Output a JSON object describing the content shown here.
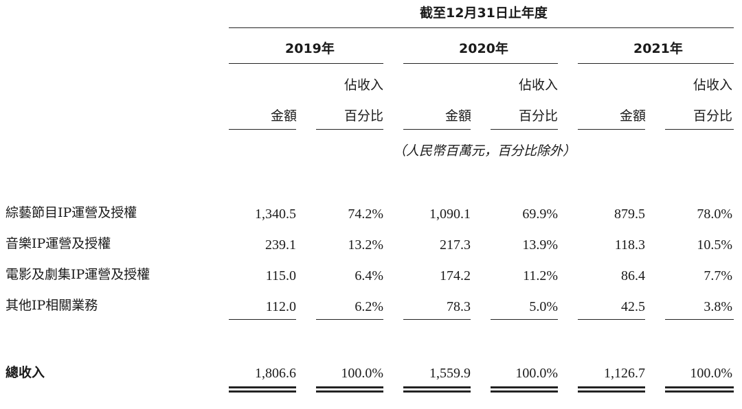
{
  "header": {
    "period": "截至12月31日止年度",
    "years": [
      "2019年",
      "2020年",
      "2021年"
    ],
    "amount_label": "金額",
    "pct_label_line1": "佔收入",
    "pct_label_line2": "百分比",
    "unit_note": "（人民幣百萬元，百分比除外）"
  },
  "rows": [
    {
      "label": "綜藝節目IP運營及授權",
      "values": [
        "1,340.5",
        "74.2%",
        "1,090.1",
        "69.9%",
        "879.5",
        "78.0%"
      ]
    },
    {
      "label": "音樂IP運營及授權",
      "values": [
        "239.1",
        "13.2%",
        "217.3",
        "13.9%",
        "118.3",
        "10.5%"
      ]
    },
    {
      "label": "電影及劇集IP運營及授權",
      "values": [
        "115.0",
        "6.4%",
        "174.2",
        "11.2%",
        "86.4",
        "7.7%"
      ]
    },
    {
      "label": "其他IP相關業務",
      "values": [
        "112.0",
        "6.2%",
        "78.3",
        "5.0%",
        "42.5",
        "3.8%"
      ]
    }
  ],
  "total": {
    "label": "總收入",
    "values": [
      "1,806.6",
      "100.0%",
      "1,559.9",
      "100.0%",
      "1,126.7",
      "100.0%"
    ]
  }
}
